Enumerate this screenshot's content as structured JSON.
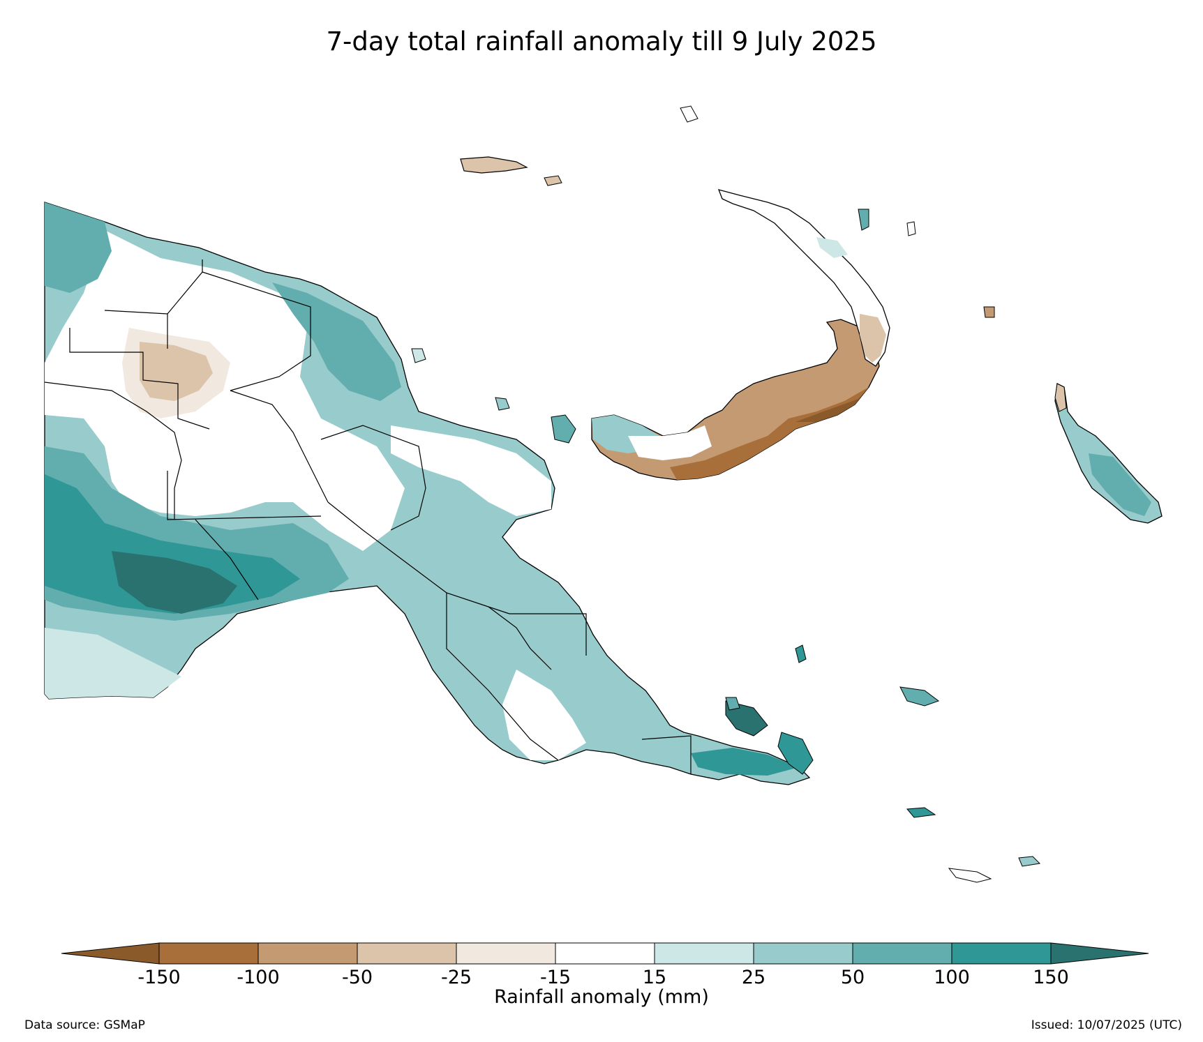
{
  "title": "7-day total rainfall anomaly till 9 July 2025",
  "colorbar": {
    "title": "Rainfall anomaly (mm)",
    "ticks": [
      "-150",
      "-100",
      "-50",
      "-25",
      "-15",
      "15",
      "25",
      "50",
      "100",
      "150"
    ],
    "colors": {
      "below_min": "#8a5a2b",
      "bins": [
        "#a86f3a",
        "#c49a72",
        "#dcc4aa",
        "#f1e8df",
        "#ffffff",
        "#cde6e6",
        "#98cbcb",
        "#62adad",
        "#2f9896"
      ],
      "above_max": "#2a7270"
    }
  },
  "footer": {
    "source": "Data source: GSMaP",
    "issued": "Issued: 10/07/2025 (UTC)"
  }
}
